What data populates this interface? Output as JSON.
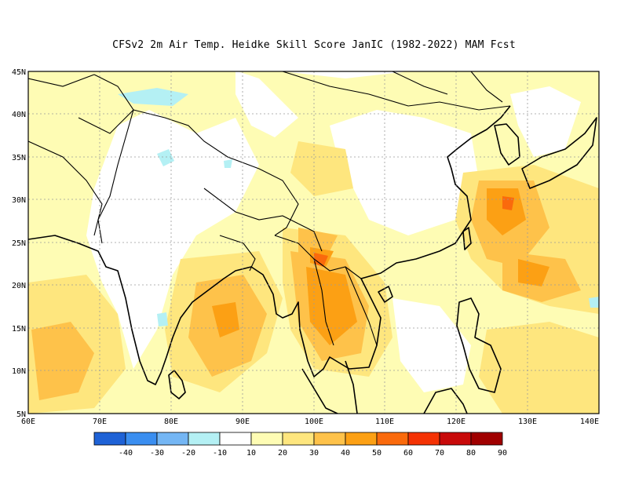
{
  "title": "CFSv2  2m Air Temp. Heidke Skill Score JanIC (1982-2022) MAM Fcst",
  "lat_labels": [
    "45N",
    "40N",
    "35N",
    "30N",
    "25N",
    "20N",
    "15N",
    "10N",
    "5N"
  ],
  "lon_labels": [
    "60E",
    "70E",
    "80E",
    "90E",
    "100E",
    "110E",
    "120E",
    "130E",
    "140E"
  ],
  "extent": {
    "lon_min": 60,
    "lon_max": 140,
    "lat_min": 5,
    "lat_max": 45
  },
  "colorbar": {
    "colors": [
      "#1e62d6",
      "#3a8ef0",
      "#74b6f4",
      "#b4f0f4",
      "#ffffff",
      "#fefcb4",
      "#fee67e",
      "#fec24a",
      "#fca014",
      "#fa6a0c",
      "#f43204",
      "#c80a0a",
      "#a00000"
    ],
    "labels": [
      "-40",
      "-30",
      "-20",
      "-10",
      "10",
      "20",
      "30",
      "40",
      "50",
      "60",
      "70",
      "80",
      "90"
    ]
  }
}
